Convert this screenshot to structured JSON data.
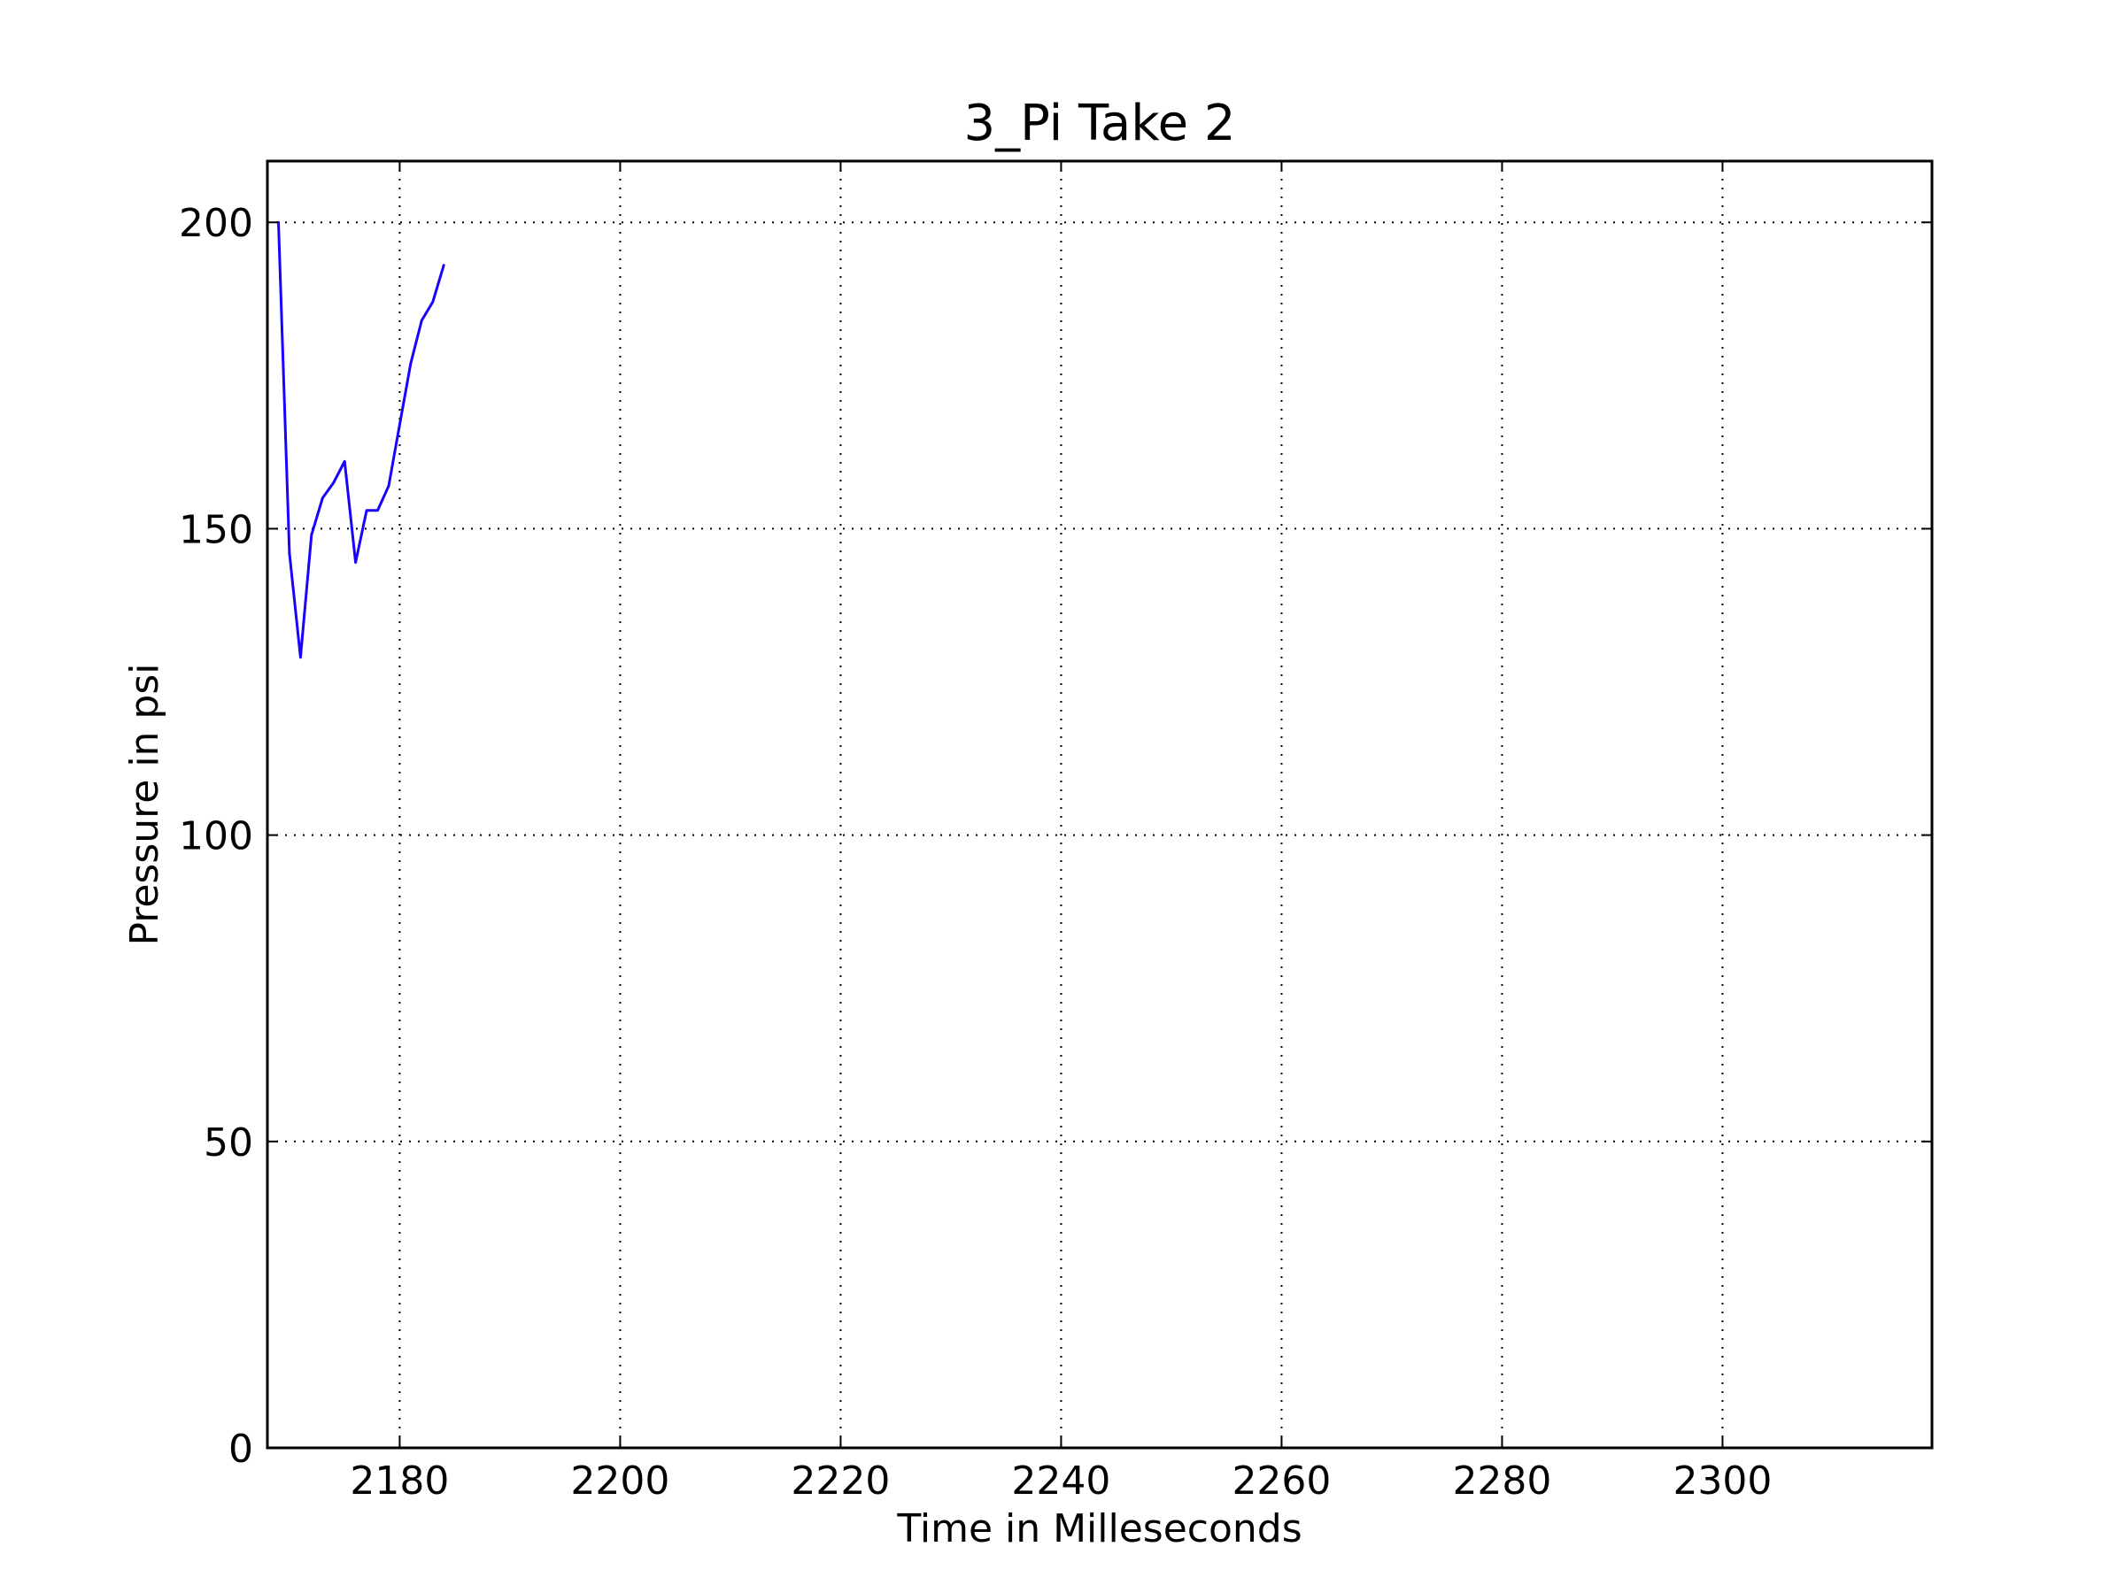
{
  "chart_data": {
    "type": "line",
    "title": "3_Pi Take 2",
    "xlabel": "Time in Milleseconds",
    "ylabel": "Pressure in psi",
    "xlim": [
      2168,
      2319
    ],
    "ylim": [
      0,
      210
    ],
    "xticks": [
      2180,
      2200,
      2220,
      2240,
      2260,
      2280,
      2300
    ],
    "yticks": [
      0,
      50,
      100,
      150,
      200
    ],
    "grid": true,
    "series": [
      {
        "name": "Pressure",
        "color": "#1a00ff",
        "x": [
          2169,
          2170,
          2171,
          2172,
          2173,
          2174,
          2175,
          2176,
          2177,
          2178,
          2179,
          2180,
          2181,
          2182,
          2183,
          2184
        ],
        "y": [
          200,
          146,
          129,
          149,
          155,
          157.5,
          161,
          144.5,
          153,
          153,
          157,
          167,
          177,
          184,
          187,
          193
        ]
      }
    ]
  }
}
